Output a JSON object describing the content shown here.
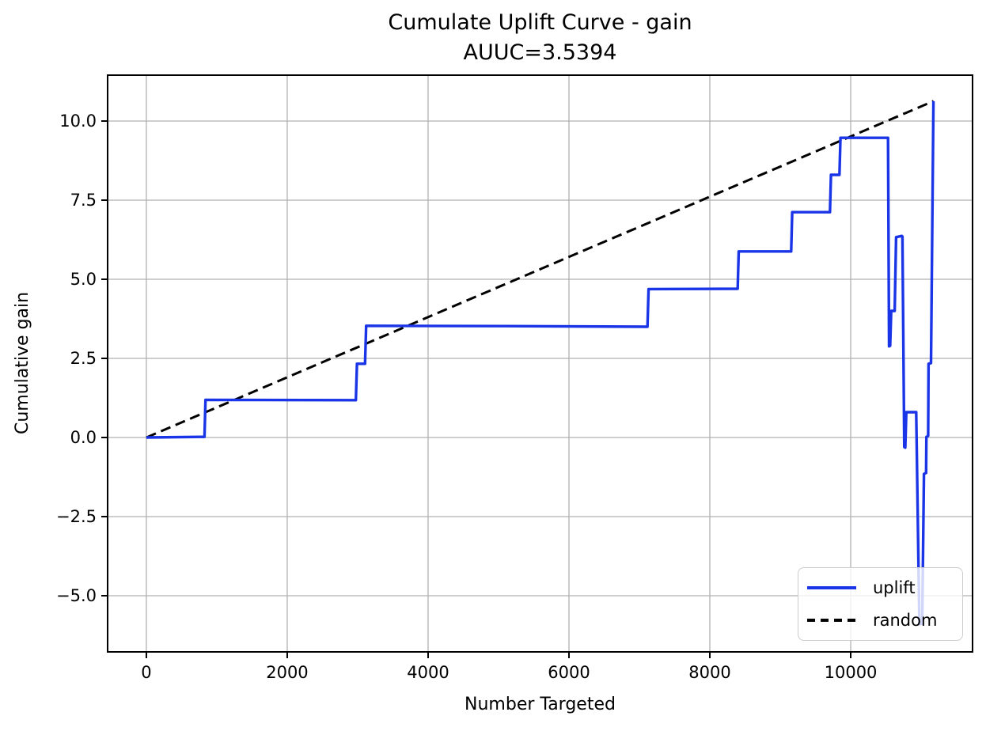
{
  "figure": {
    "title": "Cumulate Uplift Curve - gain",
    "subtitle": "AUUC=3.5394"
  },
  "chart_data": {
    "type": "line",
    "title": "Cumulate Uplift Curve - gain",
    "subtitle": "AUUC=3.5394",
    "auuc": 3.5394,
    "xlabel": "Number Targeted",
    "ylabel": "Cumulative gain",
    "xlim": [
      -550,
      11730
    ],
    "ylim": [
      -6.775,
      11.45
    ],
    "grid": true,
    "background_color": "#ffffff",
    "grid_color": "#b0b0b0",
    "spine_color": "#000000",
    "xticks": [
      {
        "v": 0,
        "label": "0"
      },
      {
        "v": 2000,
        "label": "2000"
      },
      {
        "v": 4000,
        "label": "4000"
      },
      {
        "v": 6000,
        "label": "6000"
      },
      {
        "v": 8000,
        "label": "8000"
      },
      {
        "v": 10000,
        "label": "10000"
      }
    ],
    "yticks": [
      {
        "v": 10.0,
        "label": "10.0"
      },
      {
        "v": 7.5,
        "label": "7.5"
      },
      {
        "v": 5.0,
        "label": "5.0"
      },
      {
        "v": 2.5,
        "label": "2.5"
      },
      {
        "v": 0.0,
        "label": "0.0"
      },
      {
        "v": -2.5,
        "label": "−2.5"
      },
      {
        "v": -5.0,
        "label": "−5.0"
      }
    ],
    "series": [
      {
        "name": "random",
        "color": "#000000",
        "style": "dashed",
        "width": 3,
        "dash": [
          13,
          7
        ],
        "points": [
          [
            0,
            0.0
          ],
          [
            11175,
            10.63
          ]
        ]
      },
      {
        "name": "uplift",
        "color": "#1a35e8",
        "style": "solid",
        "width": 3.4,
        "points": [
          [
            0,
            0.0
          ],
          [
            825,
            0.02
          ],
          [
            840,
            1.19
          ],
          [
            2975,
            1.18
          ],
          [
            2990,
            2.33
          ],
          [
            3105,
            2.33
          ],
          [
            3120,
            3.53
          ],
          [
            5100,
            3.52
          ],
          [
            7115,
            3.5
          ],
          [
            7130,
            4.69
          ],
          [
            8395,
            4.7
          ],
          [
            8410,
            5.88
          ],
          [
            9155,
            5.88
          ],
          [
            9170,
            7.12
          ],
          [
            9705,
            7.12
          ],
          [
            9720,
            8.3
          ],
          [
            9840,
            8.3
          ],
          [
            9855,
            9.47
          ],
          [
            10530,
            9.47
          ],
          [
            10545,
            2.88
          ],
          [
            10560,
            2.9
          ],
          [
            10575,
            4.0
          ],
          [
            10625,
            4.0
          ],
          [
            10645,
            6.33
          ],
          [
            10725,
            6.37
          ],
          [
            10735,
            6.35
          ],
          [
            10760,
            -0.3
          ],
          [
            10775,
            -0.32
          ],
          [
            10790,
            0.8
          ],
          [
            10930,
            0.8
          ],
          [
            10975,
            -5.9
          ],
          [
            11015,
            -5.88
          ],
          [
            11040,
            -1.15
          ],
          [
            11070,
            -1.12
          ],
          [
            11075,
            0.02
          ],
          [
            11100,
            0.05
          ],
          [
            11105,
            2.33
          ],
          [
            11140,
            2.35
          ],
          [
            11175,
            10.63
          ]
        ]
      }
    ],
    "legend": {
      "position": "lower right",
      "items": [
        {
          "label": "uplift",
          "series": "uplift"
        },
        {
          "label": "random",
          "series": "random"
        }
      ]
    }
  }
}
